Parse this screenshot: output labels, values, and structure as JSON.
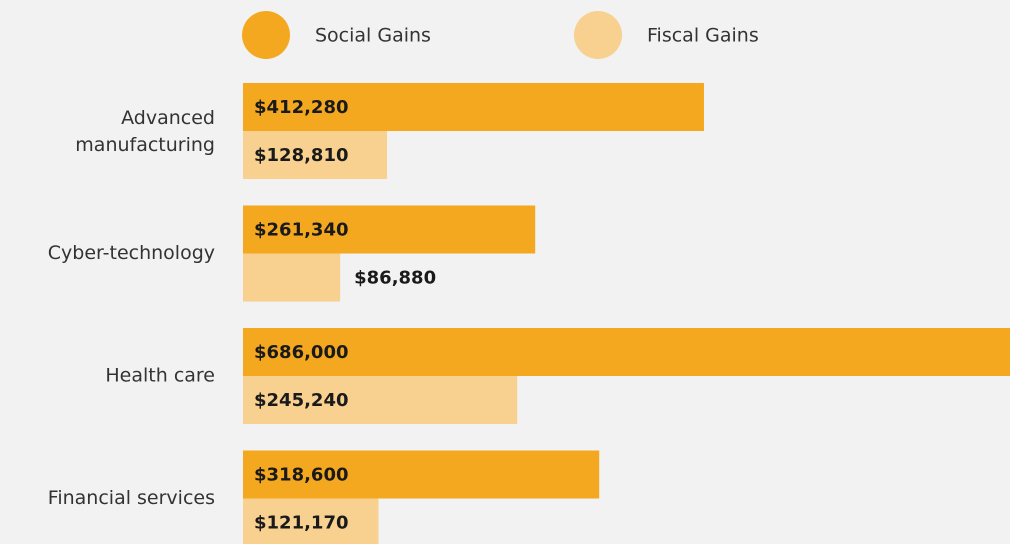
{
  "chart_data": {
    "type": "bar",
    "orientation": "horizontal",
    "categories": [
      "Advanced manufacturing",
      "Cyber-technology",
      "Health care",
      "Financial services"
    ],
    "series": [
      {
        "name": "Social Gains",
        "color": "#f4a81f",
        "values": [
          412280,
          261340,
          686000,
          318600
        ],
        "value_labels": [
          "$412,280",
          "$261,340",
          "$686,000",
          "$318,600"
        ]
      },
      {
        "name": "Fiscal Gains",
        "color": "#f8d08f",
        "values": [
          128810,
          86880,
          245240,
          121170
        ],
        "value_labels": [
          "$128,810",
          "$86,880",
          "$245,240",
          "$121,170"
        ]
      }
    ],
    "legend": "top"
  }
}
